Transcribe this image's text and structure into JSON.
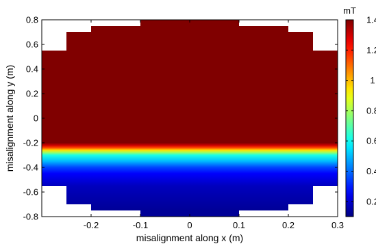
{
  "chart_data": {
    "type": "heatmap",
    "xlabel": "misalignment along x (m)",
    "ylabel": "misalignment along y (m)",
    "xlim": [
      -0.3,
      0.3
    ],
    "ylim": [
      -0.8,
      0.8
    ],
    "xticks": [
      -0.2,
      -0.1,
      0,
      0.1,
      0.2,
      0.3
    ],
    "xtick_labels": [
      "-0.2",
      "-0.1",
      "0",
      "0.1",
      "0.2",
      "0.3"
    ],
    "yticks": [
      0.8,
      0.6,
      0.4,
      0.2,
      0,
      -0.2,
      -0.4,
      -0.6,
      -0.8
    ],
    "ytick_labels": [
      "0.8",
      "0.6",
      "0.4",
      "0.2",
      "0",
      "-0.2",
      "-0.4",
      "-0.6",
      "-0.8"
    ],
    "colorbar": {
      "unit": "mT",
      "range": [
        0.1,
        1.4
      ],
      "ticks": [
        1.4,
        1.2,
        1,
        0.8,
        0.6,
        0.4,
        0.2
      ],
      "tick_labels": [
        "1.4",
        "1.2",
        "1",
        "0.8",
        "0.6",
        "0.4",
        "0.2"
      ],
      "colormap": "jet"
    },
    "field_profile_vs_y": {
      "y": [
        -0.75,
        -0.55,
        -0.45,
        -0.4,
        -0.35,
        -0.3,
        -0.28,
        -0.26,
        -0.24,
        -0.22,
        -0.2,
        0.0,
        0.8
      ],
      "value_mT": [
        0.13,
        0.18,
        0.26,
        0.35,
        0.5,
        0.62,
        0.78,
        0.95,
        1.15,
        1.3,
        1.4,
        1.4,
        1.4
      ]
    },
    "region_boundary": {
      "x_bands": [
        [
          -0.3,
          -0.25
        ],
        [
          -0.25,
          -0.2
        ],
        [
          -0.2,
          -0.1
        ],
        [
          -0.1,
          0.1
        ],
        [
          0.1,
          0.2
        ],
        [
          0.2,
          0.25
        ],
        [
          0.25,
          0.3
        ]
      ],
      "y_extent": [
        0.55,
        0.7,
        0.75,
        0.8,
        0.75,
        0.7,
        0.55
      ]
    },
    "grid": false,
    "colors": {
      "background": "#ffffff",
      "no_data": "#ffffff",
      "axes": "#000000"
    }
  }
}
